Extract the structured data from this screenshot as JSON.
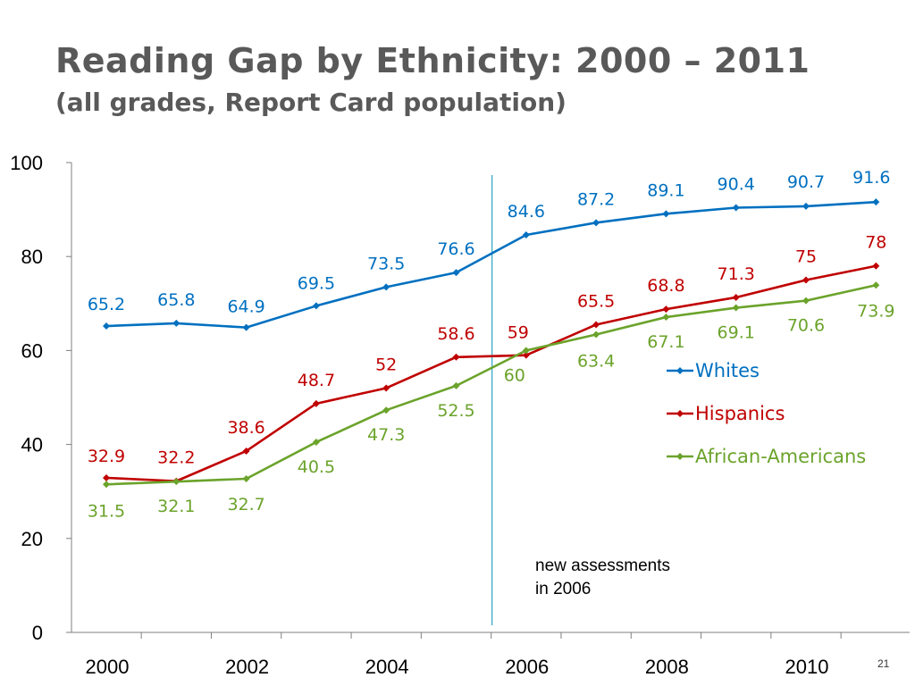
{
  "slide": {
    "title": "Reading Gap by Ethnicity:  2000 – 2011",
    "subtitle": "(all grades, Report Card population)",
    "page_number": "21"
  },
  "chart_data": {
    "type": "line",
    "title": "",
    "xlabel": "",
    "ylabel": "",
    "ylim": [
      0,
      100
    ],
    "yticks": [
      0,
      20,
      40,
      60,
      80,
      100
    ],
    "x": [
      2000,
      2001,
      2002,
      2003,
      2004,
      2005,
      2006,
      2007,
      2008,
      2009,
      2010,
      2011
    ],
    "xtick_labels": [
      "2000",
      "2002",
      "2004",
      "2006",
      "2008",
      "2010"
    ],
    "grid": false,
    "legend_position": "right",
    "series": [
      {
        "name": "Whites",
        "color": "#0070C0",
        "values": [
          65.2,
          65.8,
          64.9,
          69.5,
          73.5,
          76.6,
          84.6,
          87.2,
          89.1,
          90.4,
          90.7,
          91.6
        ],
        "labels": [
          "65.2",
          "65.8",
          "64.9",
          "69.5",
          "73.5",
          "76.6",
          "84.6",
          "87.2",
          "89.1",
          "90.4",
          "90.7",
          "91.6"
        ]
      },
      {
        "name": "Hispanics",
        "color": "#C00000",
        "values": [
          32.9,
          32.2,
          38.6,
          48.7,
          52,
          58.6,
          59,
          65.5,
          68.8,
          71.3,
          75,
          78
        ],
        "labels": [
          "32.9",
          "32.2",
          "38.6",
          "48.7",
          "52",
          "58.6",
          "59",
          "65.5",
          "68.8",
          "71.3",
          "75",
          "78"
        ]
      },
      {
        "name": "African-Americans",
        "color": "#6BA32B",
        "values": [
          31.5,
          32.1,
          32.7,
          40.5,
          47.3,
          52.5,
          60,
          63.4,
          67.1,
          69.1,
          70.6,
          73.9
        ],
        "labels": [
          "31.5",
          "32.1",
          "32.7",
          "40.5",
          "47.3",
          "52.5",
          "60",
          "63.4",
          "67.1",
          "69.1",
          "70.6",
          "73.9"
        ]
      }
    ],
    "annotation": {
      "line_1": "new assessments",
      "line_2": "in 2006",
      "marker_color": "#2FA4C8"
    }
  }
}
